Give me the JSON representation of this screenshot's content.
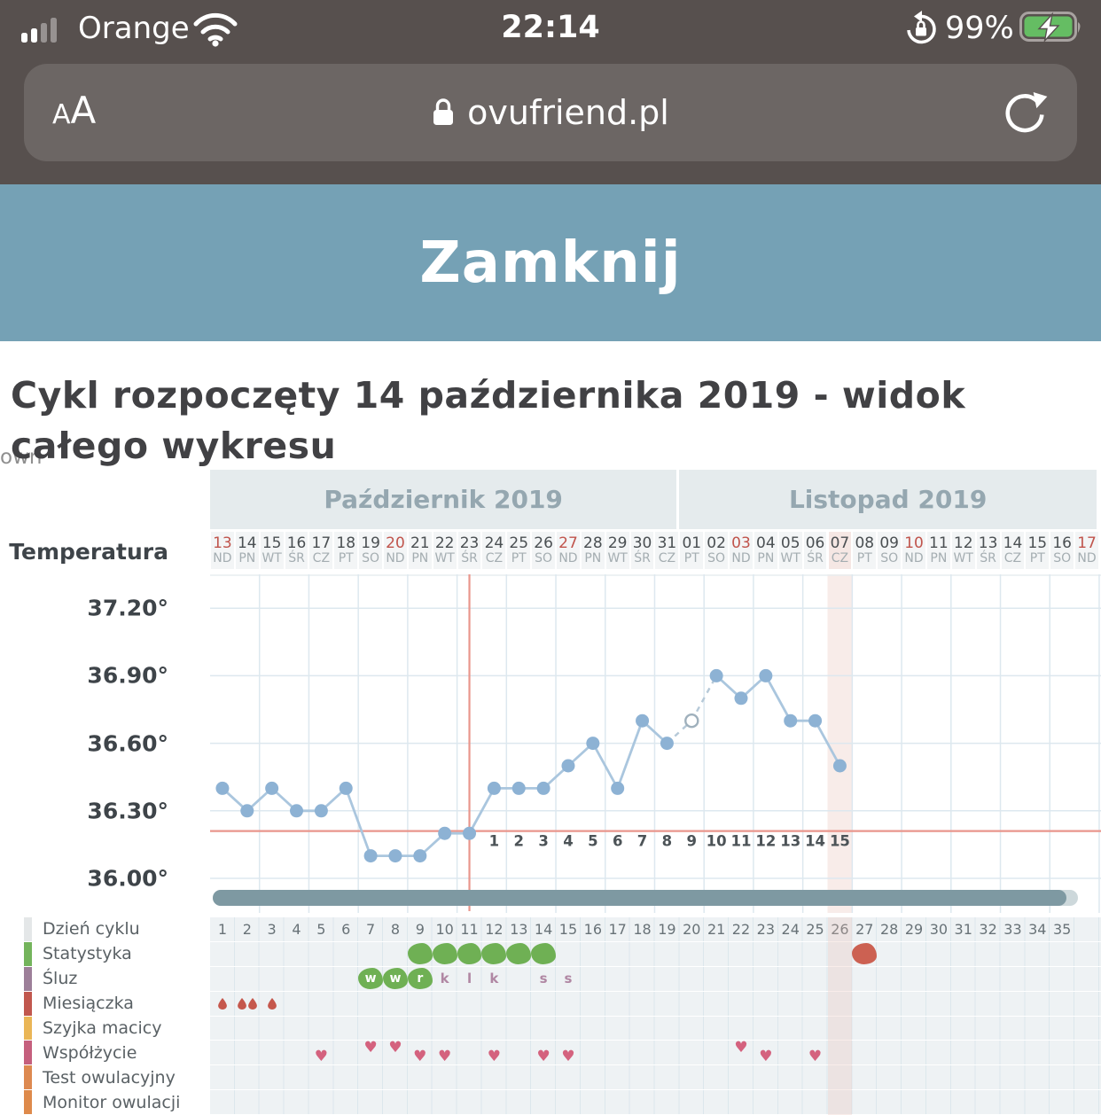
{
  "status_bar": {
    "carrier": "Orange",
    "time": "22:14",
    "battery_percent": "99%"
  },
  "browser_bar": {
    "text_size_control": "AA",
    "url": "ovufriend.pl"
  },
  "banner": {
    "close_label": "Zamknij"
  },
  "page": {
    "title": "Cykl rozpoczęty 14 października 2019 - widok całego wykresu",
    "stray_text": "own"
  },
  "chart_data": {
    "type": "line",
    "series_name": "Temperatura",
    "axis_title": "Temperatura",
    "y_ticks": [
      "37.20°",
      "36.90°",
      "36.60°",
      "36.30°",
      "36.00°"
    ],
    "y_tick_values": [
      37.2,
      36.9,
      36.6,
      36.3,
      36.0
    ],
    "ylim": [
      35.95,
      37.35
    ],
    "grid": true,
    "months": [
      {
        "label": "Październik 2019",
        "days": [
          {
            "num": "13",
            "dow": "ND",
            "sunday": true
          },
          {
            "num": "14",
            "dow": "PN"
          },
          {
            "num": "15",
            "dow": "WT"
          },
          {
            "num": "16",
            "dow": "ŚR"
          },
          {
            "num": "17",
            "dow": "CZ"
          },
          {
            "num": "18",
            "dow": "PT"
          },
          {
            "num": "19",
            "dow": "SO"
          },
          {
            "num": "20",
            "dow": "ND",
            "sunday": true
          },
          {
            "num": "21",
            "dow": "PN"
          },
          {
            "num": "22",
            "dow": "WT"
          },
          {
            "num": "23",
            "dow": "ŚR"
          },
          {
            "num": "24",
            "dow": "CZ"
          },
          {
            "num": "25",
            "dow": "PT"
          },
          {
            "num": "26",
            "dow": "SO"
          },
          {
            "num": "27",
            "dow": "ND",
            "sunday": true
          },
          {
            "num": "28",
            "dow": "PN"
          },
          {
            "num": "29",
            "dow": "WT"
          },
          {
            "num": "30",
            "dow": "ŚR"
          },
          {
            "num": "31",
            "dow": "CZ"
          }
        ]
      },
      {
        "label": "Listopad 2019",
        "days": [
          {
            "num": "01",
            "dow": "PT"
          },
          {
            "num": "02",
            "dow": "SO"
          },
          {
            "num": "03",
            "dow": "ND",
            "sunday": true
          },
          {
            "num": "04",
            "dow": "PN"
          },
          {
            "num": "05",
            "dow": "WT"
          },
          {
            "num": "06",
            "dow": "ŚR"
          },
          {
            "num": "07",
            "dow": "CZ"
          },
          {
            "num": "08",
            "dow": "PT"
          },
          {
            "num": "09",
            "dow": "SO"
          },
          {
            "num": "10",
            "dow": "ND",
            "sunday": true
          },
          {
            "num": "11",
            "dow": "PN"
          },
          {
            "num": "12",
            "dow": "WT"
          },
          {
            "num": "13",
            "dow": "ŚR"
          },
          {
            "num": "14",
            "dow": "CZ"
          },
          {
            "num": "15",
            "dow": "PT"
          },
          {
            "num": "16",
            "dow": "SO"
          },
          {
            "num": "17",
            "dow": "ND",
            "sunday": true
          }
        ]
      }
    ],
    "temperatures": [
      36.4,
      36.3,
      36.4,
      36.3,
      36.3,
      36.4,
      36.1,
      36.1,
      36.1,
      36.2,
      36.2,
      36.4,
      36.4,
      36.4,
      36.5,
      36.6,
      36.4,
      36.7,
      36.6,
      36.7,
      36.9,
      36.8,
      36.9,
      36.7,
      36.7,
      36.5
    ],
    "estimated_point_index": 19,
    "coverline_value": 36.21,
    "ovulation_line_day_index": 10,
    "today_day_index": 25,
    "dpo_labels": {
      "start_day_index": 11,
      "numbers": [
        "1",
        "2",
        "3",
        "4",
        "5",
        "6",
        "7",
        "8",
        "9",
        "10",
        "11",
        "12",
        "13",
        "14",
        "15"
      ]
    },
    "colors": {
      "line": "#aac6de",
      "point": "#8db2d4",
      "estimated_stroke": "#9fb0bc",
      "grid": "#dde8ef",
      "redline": "#e9968c",
      "today_band": "#f8ece9"
    }
  },
  "cycle_table": {
    "day_numbers": [
      "1",
      "2",
      "3",
      "4",
      "5",
      "6",
      "7",
      "8",
      "9",
      "10",
      "11",
      "12",
      "13",
      "14",
      "15",
      "16",
      "17",
      "18",
      "19",
      "20",
      "21",
      "22",
      "23",
      "24",
      "25",
      "26",
      "27",
      "28",
      "29",
      "30",
      "31",
      "32",
      "33",
      "34",
      "35"
    ],
    "today_column": 26,
    "rows": [
      {
        "label": "Dzień cyklu",
        "accent": "#e4e7e8",
        "type": "daynumbers"
      },
      {
        "label": "Statystyka",
        "accent": "#74b45c",
        "type": "blobs",
        "green_days": [
          9,
          10,
          11,
          12,
          13,
          14
        ],
        "red_days": [
          27
        ]
      },
      {
        "label": "Śluz",
        "accent": "#9d7f99",
        "type": "mucus",
        "blob_letters": [
          {
            "day": 7,
            "letter": "w"
          },
          {
            "day": 8,
            "letter": "w"
          },
          {
            "day": 9,
            "letter": "r"
          }
        ],
        "plain_letters": [
          {
            "day": 10,
            "letter": "k"
          },
          {
            "day": 11,
            "letter": "l"
          },
          {
            "day": 12,
            "letter": "k"
          },
          {
            "day": 14,
            "letter": "s"
          },
          {
            "day": 15,
            "letter": "s"
          }
        ]
      },
      {
        "label": "Miesiączka",
        "accent": "#c1574e",
        "type": "drops",
        "drops": [
          {
            "day": 1,
            "count": 1
          },
          {
            "day": 2,
            "count": 2
          },
          {
            "day": 3,
            "count": 1
          }
        ]
      },
      {
        "label": "Szyjka macicy",
        "accent": "#eab656",
        "type": "empty"
      },
      {
        "label": "Współżycie",
        "accent": "#c55f7d",
        "type": "hearts",
        "hearts": [
          {
            "day": 5,
            "pos": "low"
          },
          {
            "day": 7,
            "pos": "high"
          },
          {
            "day": 8,
            "pos": "high"
          },
          {
            "day": 9,
            "pos": "low"
          },
          {
            "day": 10,
            "pos": "low"
          },
          {
            "day": 12,
            "pos": "low"
          },
          {
            "day": 14,
            "pos": "low"
          },
          {
            "day": 15,
            "pos": "low"
          },
          {
            "day": 22,
            "pos": "high"
          },
          {
            "day": 23,
            "pos": "low"
          },
          {
            "day": 25,
            "pos": "low"
          }
        ]
      },
      {
        "label": "Test owulacyjny",
        "accent": "#dd8950",
        "type": "empty"
      },
      {
        "label": "Monitor owulacji",
        "accent": "#de8a4b",
        "type": "empty"
      }
    ],
    "drop_color": "#c5574c"
  }
}
